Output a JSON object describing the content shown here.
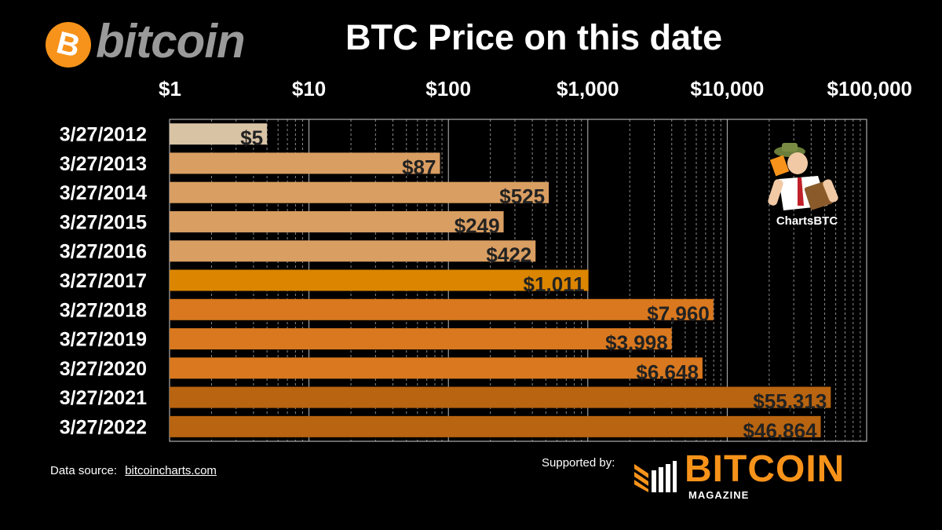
{
  "header": {
    "logo_symbol": "B",
    "logo_word": "bitcoin",
    "title": "BTC Price on this date"
  },
  "chart_data": {
    "type": "bar",
    "orientation": "horizontal",
    "scale": "log",
    "title": "BTC Price on this date",
    "xlim": [
      1,
      100000
    ],
    "xticks": [
      {
        "value": 1,
        "label": "$1"
      },
      {
        "value": 10,
        "label": "$10"
      },
      {
        "value": 100,
        "label": "$100"
      },
      {
        "value": 1000,
        "label": "$1,000"
      },
      {
        "value": 10000,
        "label": "$10,000"
      },
      {
        "value": 100000,
        "label": "$100,000"
      }
    ],
    "grid": true,
    "categories": [
      "3/27/2012",
      "3/27/2013",
      "3/27/2014",
      "3/27/2015",
      "3/27/2016",
      "3/27/2017",
      "3/27/2018",
      "3/27/2019",
      "3/27/2020",
      "3/27/2021",
      "3/27/2022"
    ],
    "values": [
      5,
      87,
      525,
      249,
      422,
      1011,
      7960,
      3998,
      6648,
      55313,
      46864
    ],
    "labels": [
      "$5",
      "$87",
      "$525",
      "$249",
      "$422",
      "$1,011",
      "$7,960",
      "$3,998",
      "$6,648",
      "$55,313",
      "$46,864"
    ],
    "colors": [
      "#d9c3a5",
      "#d99e62",
      "#d99e62",
      "#d99e62",
      "#d99e62",
      "#db8500",
      "#d9781e",
      "#d9781e",
      "#d9781e",
      "#b86410",
      "#b86410"
    ]
  },
  "footer": {
    "source_label": "Data source:",
    "source_link": "bitcoincharts.com",
    "supported_label": "Supported by:",
    "magazine_word": "BITCOIN",
    "magazine_sub": "MAGAZINE"
  },
  "mascot": {
    "label": "ChartsBTC"
  },
  "colors": {
    "accent": "#f7931a",
    "background": "#000000",
    "grid": "#9a9a9a"
  }
}
